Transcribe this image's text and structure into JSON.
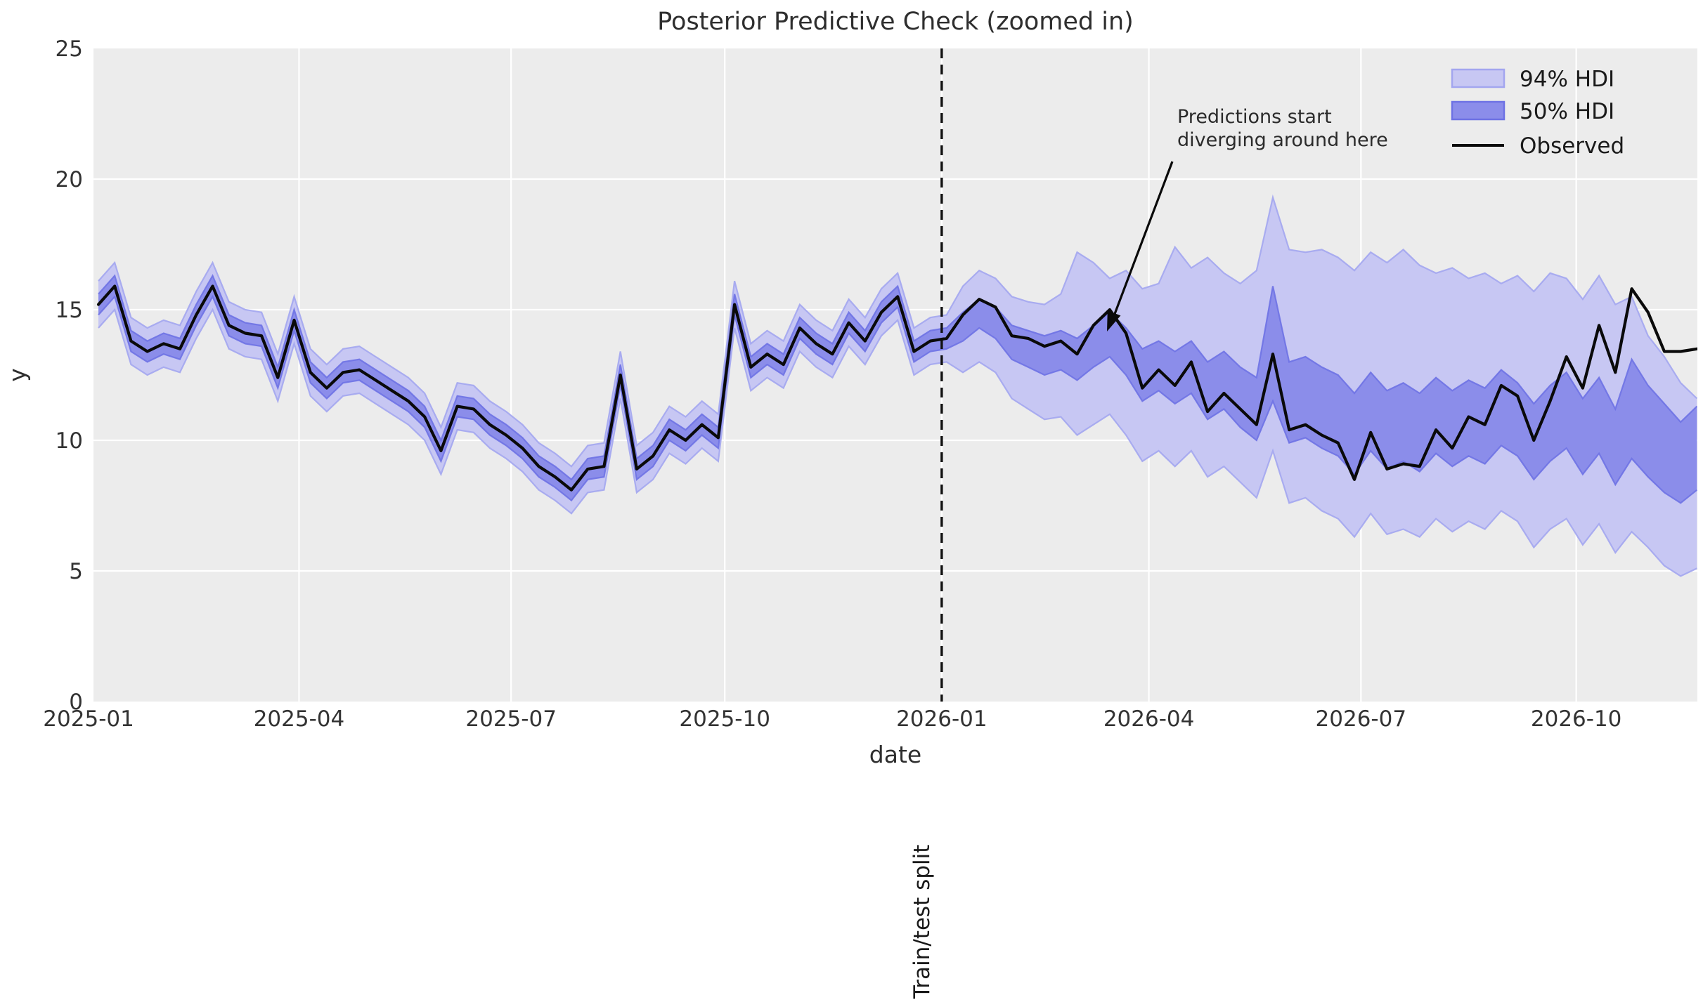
{
  "figure": {
    "title": "Posterior Predictive Check (zoomed in)"
  },
  "axes": {
    "xlabel": "date",
    "ylabel": "y"
  },
  "legend": {
    "items": [
      {
        "label": "94% HDI",
        "swatch": "hdi94-patch"
      },
      {
        "label": "50% HDI",
        "swatch": "hdi50-patch"
      },
      {
        "label": "Observed",
        "swatch": "observed-line"
      }
    ]
  },
  "annotation": {
    "line1": "Predictions start",
    "line2": "diverging around here"
  },
  "split": {
    "label": "Train/test split"
  },
  "colors": {
    "figure_bg": "#ffffff",
    "axes_bg": "#ececec",
    "grid": "#ffffff",
    "observed": "#0a0a0a",
    "hdi94_fill": "#c7c7f3",
    "hdi94_edge": "#a3a6ef",
    "hdi50_fill": "#8b8dea",
    "hdi50_edge": "#6e72e4",
    "split_line": "#111111",
    "text": "#333333"
  },
  "chart_data": {
    "type": "line",
    "title": "Posterior Predictive Check (zoomed in)",
    "xlabel": "date",
    "ylabel": "y",
    "ylim": [
      0,
      25
    ],
    "yticks": [
      0,
      5,
      10,
      15,
      20,
      25
    ],
    "grid": true,
    "legend_position": "upper right",
    "x_unit": "weeks since 2025-01",
    "x_ticks": [
      {
        "label": "2025-01",
        "week": -0.6
      },
      {
        "label": "2025-04",
        "week": 12.3
      },
      {
        "label": "2025-07",
        "week": 25.3
      },
      {
        "label": "2025-10",
        "week": 38.4
      },
      {
        "label": "2026-01",
        "week": 51.7
      },
      {
        "label": "2026-04",
        "week": 64.4
      },
      {
        "label": "2026-07",
        "week": 77.4
      },
      {
        "label": "2026-10",
        "week": 90.6
      }
    ],
    "train_test_split_week": 51.7,
    "series": [
      {
        "name": "Observed",
        "values": [
          15.2,
          15.9,
          13.8,
          13.4,
          13.7,
          13.5,
          14.8,
          15.9,
          14.4,
          14.1,
          14.0,
          12.4,
          14.6,
          12.6,
          12.0,
          12.6,
          12.7,
          12.3,
          11.9,
          11.5,
          10.9,
          9.6,
          11.3,
          11.2,
          10.6,
          10.2,
          9.7,
          9.0,
          8.6,
          8.1,
          8.9,
          9.0,
          12.5,
          8.9,
          9.4,
          10.4,
          10.0,
          10.6,
          10.1,
          15.2,
          12.8,
          13.3,
          12.9,
          14.3,
          13.7,
          13.3,
          14.5,
          13.8,
          14.9,
          15.5,
          13.4,
          13.8,
          13.9,
          14.8,
          15.4,
          15.1,
          14.0,
          13.9,
          13.6,
          13.8,
          13.3,
          14.4,
          15.0,
          14.1,
          12.0,
          12.7,
          12.1,
          13.0,
          11.1,
          11.8,
          11.2,
          10.6,
          13.3,
          10.4,
          10.6,
          10.2,
          9.9,
          8.5,
          10.3,
          8.9,
          9.1,
          9.0,
          10.4,
          9.7,
          10.9,
          10.6,
          12.1,
          11.7,
          10.0,
          11.5,
          13.2,
          12.0,
          14.4,
          12.6,
          15.8,
          14.9,
          13.4,
          13.4,
          13.5
        ]
      },
      {
        "name": "94% HDI upper",
        "values": [
          16.1,
          16.8,
          14.7,
          14.3,
          14.6,
          14.4,
          15.7,
          16.8,
          15.3,
          15.0,
          14.9,
          13.3,
          15.5,
          13.5,
          12.9,
          13.5,
          13.6,
          13.2,
          12.8,
          12.4,
          11.8,
          10.5,
          12.2,
          12.1,
          11.5,
          11.1,
          10.6,
          9.9,
          9.5,
          9.0,
          9.8,
          9.9,
          13.4,
          9.8,
          10.3,
          11.3,
          10.9,
          11.5,
          11.0,
          16.1,
          13.7,
          14.2,
          13.8,
          15.2,
          14.6,
          14.2,
          15.4,
          14.7,
          15.8,
          16.4,
          14.3,
          14.7,
          14.8,
          15.9,
          16.5,
          16.2,
          15.5,
          15.3,
          15.2,
          15.6,
          17.2,
          16.8,
          16.2,
          16.5,
          15.8,
          16.0,
          17.4,
          16.6,
          17.0,
          16.4,
          16.0,
          16.5,
          19.3,
          17.3,
          17.2,
          17.3,
          17.0,
          16.5,
          17.2,
          16.8,
          17.3,
          16.7,
          16.4,
          16.6,
          16.2,
          16.4,
          16.0,
          16.3,
          15.7,
          16.4,
          16.2,
          15.4,
          16.3,
          15.2,
          15.5,
          14.0,
          13.2,
          12.2,
          11.6
        ]
      },
      {
        "name": "94% HDI lower",
        "values": [
          14.3,
          15.0,
          12.9,
          12.5,
          12.8,
          12.6,
          13.9,
          15.0,
          13.5,
          13.2,
          13.1,
          11.5,
          13.7,
          11.7,
          11.1,
          11.7,
          11.8,
          11.4,
          11.0,
          10.6,
          10.0,
          8.7,
          10.4,
          10.3,
          9.7,
          9.3,
          8.8,
          8.1,
          7.7,
          7.2,
          8.0,
          8.1,
          11.6,
          8.0,
          8.5,
          9.5,
          9.1,
          9.7,
          9.2,
          14.3,
          11.9,
          12.4,
          12.0,
          13.4,
          12.8,
          12.4,
          13.6,
          12.9,
          14.0,
          14.6,
          12.5,
          12.9,
          13.0,
          12.6,
          13.0,
          12.6,
          11.6,
          11.2,
          10.8,
          10.9,
          10.2,
          10.6,
          11.0,
          10.2,
          9.2,
          9.6,
          9.0,
          9.6,
          8.6,
          9.0,
          8.4,
          7.8,
          9.6,
          7.6,
          7.8,
          7.3,
          7.0,
          6.3,
          7.2,
          6.4,
          6.6,
          6.3,
          7.0,
          6.5,
          6.9,
          6.6,
          7.3,
          6.9,
          5.9,
          6.6,
          7.0,
          6.0,
          6.8,
          5.7,
          6.5,
          5.9,
          5.2,
          4.8,
          5.1
        ]
      },
      {
        "name": "50% HDI upper",
        "values": [
          15.6,
          16.3,
          14.2,
          13.8,
          14.1,
          13.9,
          15.2,
          16.3,
          14.8,
          14.5,
          14.4,
          12.8,
          15.0,
          13.0,
          12.4,
          13.0,
          13.1,
          12.7,
          12.3,
          11.9,
          11.3,
          10.0,
          11.7,
          11.6,
          11.0,
          10.6,
          10.1,
          9.4,
          9.0,
          8.5,
          9.3,
          9.4,
          12.9,
          9.3,
          9.8,
          10.8,
          10.4,
          11.0,
          10.5,
          15.6,
          13.2,
          13.7,
          13.3,
          14.7,
          14.1,
          13.7,
          14.9,
          14.2,
          15.3,
          15.9,
          13.8,
          14.2,
          14.3,
          14.9,
          15.4,
          15.1,
          14.4,
          14.2,
          14.0,
          14.2,
          13.9,
          14.4,
          14.9,
          14.3,
          13.5,
          13.8,
          13.4,
          13.8,
          13.0,
          13.4,
          12.8,
          12.4,
          15.9,
          13.0,
          13.2,
          12.8,
          12.5,
          11.8,
          12.6,
          11.9,
          12.2,
          11.8,
          12.4,
          11.9,
          12.3,
          12.0,
          12.7,
          12.2,
          11.4,
          12.1,
          12.6,
          11.6,
          12.4,
          11.2,
          13.1,
          12.1,
          11.4,
          10.7,
          11.3
        ]
      },
      {
        "name": "50% HDI lower",
        "values": [
          14.8,
          15.5,
          13.4,
          13.0,
          13.3,
          13.1,
          14.4,
          15.5,
          14.0,
          13.7,
          13.6,
          12.0,
          14.2,
          12.2,
          11.6,
          12.2,
          12.3,
          11.9,
          11.5,
          11.1,
          10.5,
          9.2,
          10.9,
          10.8,
          10.2,
          9.8,
          9.3,
          8.6,
          8.2,
          7.7,
          8.5,
          8.6,
          12.1,
          8.5,
          9.0,
          10.0,
          9.6,
          10.2,
          9.7,
          14.8,
          12.4,
          12.9,
          12.5,
          13.9,
          13.3,
          12.9,
          14.1,
          13.4,
          14.5,
          15.1,
          13.0,
          13.4,
          13.5,
          13.8,
          14.3,
          13.9,
          13.1,
          12.8,
          12.5,
          12.7,
          12.3,
          12.8,
          13.2,
          12.5,
          11.5,
          11.9,
          11.4,
          11.8,
          10.8,
          11.2,
          10.5,
          10.0,
          11.5,
          9.9,
          10.1,
          9.7,
          9.4,
          8.7,
          9.6,
          8.9,
          9.2,
          8.8,
          9.5,
          9.0,
          9.4,
          9.1,
          9.8,
          9.4,
          8.5,
          9.2,
          9.7,
          8.7,
          9.5,
          8.3,
          9.3,
          8.6,
          8.0,
          7.6,
          8.1
        ]
      }
    ]
  }
}
